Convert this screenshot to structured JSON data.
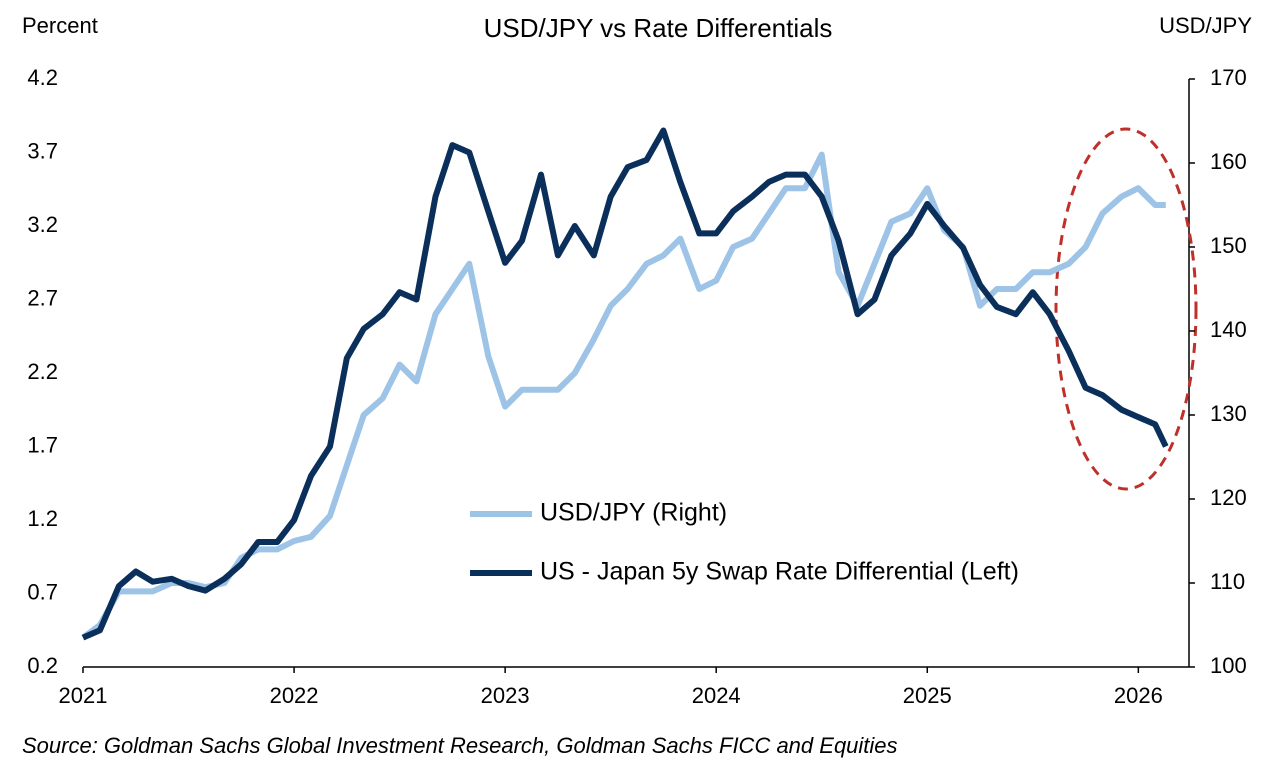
{
  "chart_data": {
    "type": "line",
    "title": "USD/JPY vs Rate Differentials",
    "y_label": "Percent",
    "y2_label": "USD/JPY",
    "source": "Source: Goldman Sachs Global Investment Research, Goldman Sachs FICC and Equities",
    "x": [
      2021.0,
      2021.08,
      2021.17,
      2021.25,
      2021.33,
      2021.42,
      2021.5,
      2021.58,
      2021.67,
      2021.75,
      2021.83,
      2021.92,
      2022.0,
      2022.08,
      2022.17,
      2022.25,
      2022.33,
      2022.42,
      2022.5,
      2022.58,
      2022.67,
      2022.75,
      2022.83,
      2022.92,
      2023.0,
      2023.08,
      2023.17,
      2023.25,
      2023.33,
      2023.42,
      2023.5,
      2023.58,
      2023.67,
      2023.75,
      2023.83,
      2023.92,
      2024.0,
      2024.08,
      2024.17,
      2024.25,
      2024.33,
      2024.42,
      2024.5,
      2024.58,
      2024.67,
      2024.75,
      2024.83,
      2024.92,
      2025.0,
      2025.08,
      2025.17,
      2025.25,
      2025.33,
      2025.42,
      2025.5,
      2025.58,
      2025.67,
      2025.75,
      2025.83,
      2025.92,
      2026.0,
      2026.08,
      2026.13
    ],
    "series": [
      {
        "name": "USD/JPY (Right)",
        "color": "#9dc3e6",
        "axis": "y2",
        "values": [
          103.5,
          105,
          109,
          109,
          109,
          110,
          110,
          109.5,
          110,
          113,
          114,
          114,
          115,
          115.5,
          118,
          124,
          130,
          132,
          136,
          134,
          142,
          145,
          148,
          137,
          131,
          133,
          133,
          133,
          135,
          139,
          143,
          145,
          148,
          149,
          151,
          145,
          146,
          150,
          151,
          154,
          157,
          157,
          161,
          147,
          143,
          148,
          153,
          154,
          157,
          152,
          150,
          143,
          145,
          145,
          147,
          147,
          148,
          150,
          154,
          156,
          157,
          155,
          155
        ]
      },
      {
        "name": "US - Japan 5y Swap Rate Differential (Left)",
        "color": "#0b2f5b",
        "values": [
          0.4,
          0.45,
          0.75,
          0.85,
          0.78,
          0.8,
          0.75,
          0.72,
          0.8,
          0.9,
          1.05,
          1.05,
          1.2,
          1.5,
          1.7,
          2.3,
          2.5,
          2.6,
          2.75,
          2.7,
          3.4,
          3.75,
          3.7,
          3.3,
          2.95,
          3.1,
          3.55,
          3.0,
          3.2,
          3.0,
          3.4,
          3.6,
          3.65,
          3.85,
          3.5,
          3.15,
          3.15,
          3.3,
          3.4,
          3.5,
          3.55,
          3.55,
          3.4,
          3.1,
          2.6,
          2.7,
          3.0,
          3.15,
          3.35,
          3.2,
          3.05,
          2.8,
          2.65,
          2.6,
          2.75,
          2.6,
          2.35,
          2.1,
          2.05,
          1.95,
          1.9,
          1.85,
          1.7
        ]
      }
    ],
    "xlim": [
      2021,
      2026.24
    ],
    "xticks": [
      2021,
      2022,
      2023,
      2024,
      2025,
      2026
    ],
    "ylim": [
      0.2,
      4.2
    ],
    "yticks": [
      0.2,
      0.7,
      1.2,
      1.7,
      2.2,
      2.7,
      3.2,
      3.7,
      4.2
    ],
    "y2lim": [
      100,
      170
    ],
    "y2ticks": [
      100,
      110,
      120,
      130,
      140,
      150,
      160,
      170
    ]
  }
}
